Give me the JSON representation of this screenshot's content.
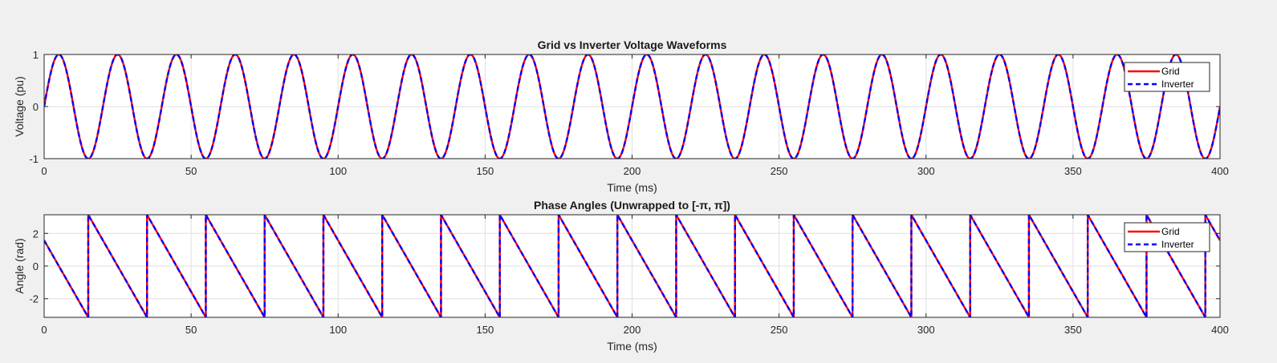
{
  "chart_data": [
    {
      "type": "line",
      "title": "Grid vs Inverter Voltage Waveforms",
      "xlabel": "Time (ms)",
      "ylabel": "Voltage (pu)",
      "xlim": [
        0,
        400
      ],
      "ylim": [
        -1,
        1
      ],
      "xticks": [
        0,
        50,
        100,
        150,
        200,
        250,
        300,
        350,
        400
      ],
      "yticks": [
        -1,
        0,
        1
      ],
      "grid": true,
      "legend_position": "top-right",
      "series": [
        {
          "name": "Grid",
          "color": "#ff0000",
          "style": "solid",
          "function": "sine",
          "frequency_hz": 50,
          "amplitude": 1
        },
        {
          "name": "Inverter",
          "color": "#0000ff",
          "style": "dashed",
          "function": "sine",
          "frequency_hz": 50,
          "amplitude": 1
        }
      ]
    },
    {
      "type": "line",
      "title": "Phase Angles (Unwrapped to [-π, π])",
      "xlabel": "Time (ms)",
      "ylabel": "Angle (rad)",
      "xlim": [
        0,
        400
      ],
      "ylim": [
        -3.1416,
        3.1416
      ],
      "xticks": [
        0,
        50,
        100,
        150,
        200,
        250,
        300,
        350,
        400
      ],
      "yticks": [
        -2,
        0,
        2
      ],
      "grid": true,
      "legend_position": "top-right",
      "series": [
        {
          "name": "Grid",
          "color": "#ff0000",
          "style": "solid",
          "function": "sawtooth",
          "start_value": 1.5708,
          "period_ms": 20,
          "first_wrap_ms": 15
        },
        {
          "name": "Inverter",
          "color": "#0000ff",
          "style": "dashed",
          "function": "sawtooth",
          "start_value": 1.5708,
          "period_ms": 20,
          "first_wrap_ms": 15
        }
      ]
    }
  ]
}
